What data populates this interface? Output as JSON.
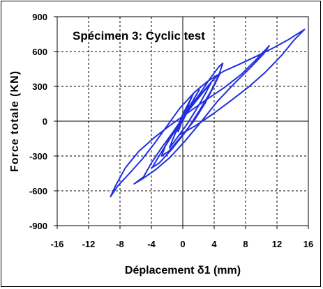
{
  "chart_data": {
    "type": "line",
    "title": "Spécimen 3: Cyclic test",
    "xlabel": "Déplacement δ1 (mm)",
    "ylabel": "Force totale (KN)",
    "xlim": [
      -16,
      16
    ],
    "ylim": [
      -900,
      900
    ],
    "xticks": [
      "-16",
      "-12",
      "-8",
      "-4",
      "0",
      "4",
      "8",
      "12",
      "16"
    ],
    "yticks": [
      "900",
      "600",
      "300",
      "0",
      "-300",
      "-600",
      "-900"
    ],
    "grid": true,
    "grid_style": "dashed",
    "line_color": "#1f2fe0",
    "series": [
      {
        "x": [
          0,
          0.4,
          0.8,
          0.5,
          0.1,
          -0.3,
          -0.6,
          -0.2,
          0.3,
          0.9,
          1.3,
          0.7,
          0.0,
          -0.6,
          -1.0,
          -0.3,
          0.6,
          1.5,
          2.1,
          1.4,
          0.4,
          -0.6,
          -1.3,
          -1.7,
          -0.8,
          0.6,
          1.8,
          2.9,
          3.6,
          2.6,
          1.3,
          0.0,
          -1.2,
          -2.2,
          -2.7,
          -1.8,
          -0.3,
          1.4,
          2.8,
          4.1,
          4.8,
          3.8,
          2.4,
          1.0,
          -0.5,
          -2.0,
          -3.2,
          -3.9,
          -3.0,
          -1.5,
          0.5,
          2.2,
          3.6,
          4.6,
          5.1,
          4.6,
          3.5,
          2.2,
          0.6,
          -1.1,
          -2.7,
          -4.0,
          -5.0,
          -6.2,
          -5.2,
          -3.5,
          -1.6,
          0.3,
          2.4,
          4.4,
          6.5,
          8.6,
          10.3,
          11.0,
          10.6,
          9.2,
          7.4,
          5.3,
          3.1,
          0.8,
          -1.5,
          -3.6,
          -5.6,
          -7.3,
          -8.6,
          -9.2,
          -8.3,
          -6.8,
          -5.2,
          -3.7,
          -2.1,
          -0.4,
          1.5,
          3.3,
          5.2,
          7.2,
          9.4,
          11.5,
          13.4,
          14.8,
          15.5,
          14.2,
          12.5,
          10.5,
          8.3,
          6.0,
          3.8,
          1.6,
          -0.5
        ],
        "y": [
          0,
          60,
          150,
          110,
          40,
          -40,
          -90,
          -20,
          70,
          170,
          230,
          150,
          60,
          -40,
          -110,
          -30,
          80,
          200,
          270,
          190,
          70,
          -50,
          -160,
          -230,
          -150,
          -20,
          110,
          240,
          330,
          250,
          140,
          30,
          -90,
          -210,
          -300,
          -260,
          -140,
          0,
          150,
          320,
          420,
          350,
          240,
          120,
          -30,
          -190,
          -320,
          -400,
          -360,
          -250,
          -80,
          100,
          260,
          400,
          500,
          470,
          370,
          240,
          90,
          -80,
          -230,
          -360,
          -480,
          -540,
          -500,
          -420,
          -310,
          -170,
          0,
          170,
          320,
          460,
          580,
          650,
          620,
          520,
          400,
          290,
          190,
          80,
          -30,
          -140,
          -260,
          -400,
          -560,
          -650,
          -560,
          -450,
          -330,
          -200,
          -50,
          110,
          250,
          350,
          430,
          490,
          560,
          630,
          700,
          760,
          790,
          700,
          560,
          420,
          290,
          170,
          60,
          -40,
          -120
        ]
      }
    ]
  }
}
